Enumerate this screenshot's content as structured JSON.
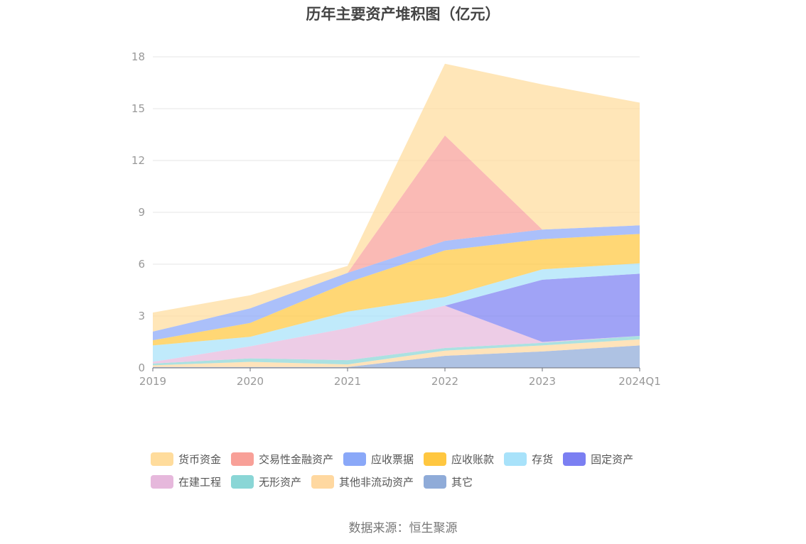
{
  "chart_data": {
    "type": "area",
    "stacked": true,
    "title": "历年主要资产堆积图（亿元）",
    "categories": [
      "2019",
      "2020",
      "2021",
      "2022",
      "2023",
      "2024Q1"
    ],
    "y_ticks": [
      "0",
      "3",
      "6",
      "9",
      "12",
      "15",
      "18"
    ],
    "ylim": [
      0,
      18
    ],
    "xlabel": "",
    "ylabel": "",
    "grid": true,
    "legend_position": "bottom",
    "series": [
      {
        "name": "其它",
        "color": "#8fabd8",
        "values": [
          0.05,
          0.05,
          0.05,
          0.7,
          0.95,
          1.3
        ]
      },
      {
        "name": "其他非流动资产",
        "color": "#ffd8a0",
        "values": [
          0.1,
          0.3,
          0.15,
          0.3,
          0.35,
          0.35
        ]
      },
      {
        "name": "无形资产",
        "color": "#8ad6d6",
        "values": [
          0.1,
          0.2,
          0.25,
          0.15,
          0.15,
          0.2
        ]
      },
      {
        "name": "在建工程",
        "color": "#e6b8dc",
        "values": [
          0.1,
          0.7,
          1.85,
          2.45,
          0.05,
          0.0
        ]
      },
      {
        "name": "固定资产",
        "color": "#7b7ff2",
        "values": [
          0.0,
          0.0,
          0.0,
          0.0,
          3.6,
          3.6
        ]
      },
      {
        "name": "存货",
        "color": "#a8e2fa",
        "values": [
          0.95,
          0.55,
          0.95,
          0.5,
          0.6,
          0.6
        ]
      },
      {
        "name": "应收账款",
        "color": "#ffc740",
        "values": [
          0.3,
          0.8,
          1.7,
          2.7,
          1.75,
          1.7
        ]
      },
      {
        "name": "应收票据",
        "color": "#8aa8f8",
        "values": [
          0.5,
          0.85,
          0.55,
          0.55,
          0.55,
          0.5
        ]
      },
      {
        "name": "交易性金融资产",
        "color": "#f8a098",
        "values": [
          0.0,
          0.0,
          0.0,
          6.1,
          0.0,
          0.0
        ]
      },
      {
        "name": "货币资金",
        "color": "#ffdc9c",
        "values": [
          1.1,
          0.75,
          0.4,
          4.15,
          8.4,
          7.1
        ]
      }
    ]
  },
  "legend": {
    "row1": [
      "货币资金",
      "交易性金融资产",
      "应收票据",
      "应收账款",
      "存货",
      "固定资产"
    ],
    "row2": [
      "在建工程",
      "无形资产",
      "其他非流动资产",
      "其它"
    ]
  },
  "source": "数据来源：恒生聚源"
}
